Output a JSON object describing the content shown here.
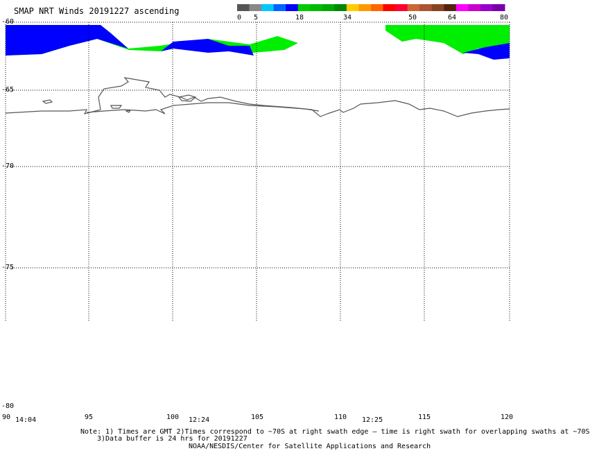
{
  "title": "SMAP NRT Winds 20191227 ascending",
  "colorbar": {
    "labels": [
      "0",
      "5",
      "18",
      "34",
      "50",
      "64",
      "80"
    ],
    "segments": [
      "#555555",
      "#888888",
      "#00c8ff",
      "#0064ff",
      "#0000ff",
      "#00cc00",
      "#00bb00",
      "#00aa00",
      "#008800",
      "#ffcc00",
      "#ff9900",
      "#ff6600",
      "#ff0000",
      "#ff0033",
      "#cc6633",
      "#aa5533",
      "#884422",
      "#552211",
      "#ff00ff",
      "#cc00cc",
      "#9900cc",
      "#7700aa"
    ]
  },
  "latitudes": [
    "-60",
    "-65",
    "-70",
    "-75",
    "-80"
  ],
  "longitudes": [
    "90",
    "95",
    "100",
    "105",
    "110",
    "115",
    "120"
  ],
  "times": [
    "14:04",
    "12:24",
    "12:25"
  ],
  "note": {
    "line1": "Note: 1) Times are GMT 2)Times correspond to ~70S at right swath edge — time is right swath for overlapping swaths at ~70S",
    "line2": "3)Data buffer is 24 hrs for 20191227",
    "line3": "NOAA/NESDIS/Center for Satellite Applications and Research"
  },
  "colors": {
    "wind_blue": "#0000ff",
    "wind_green": "#00ee00",
    "coastline": "#555555",
    "grid": "#000000"
  }
}
